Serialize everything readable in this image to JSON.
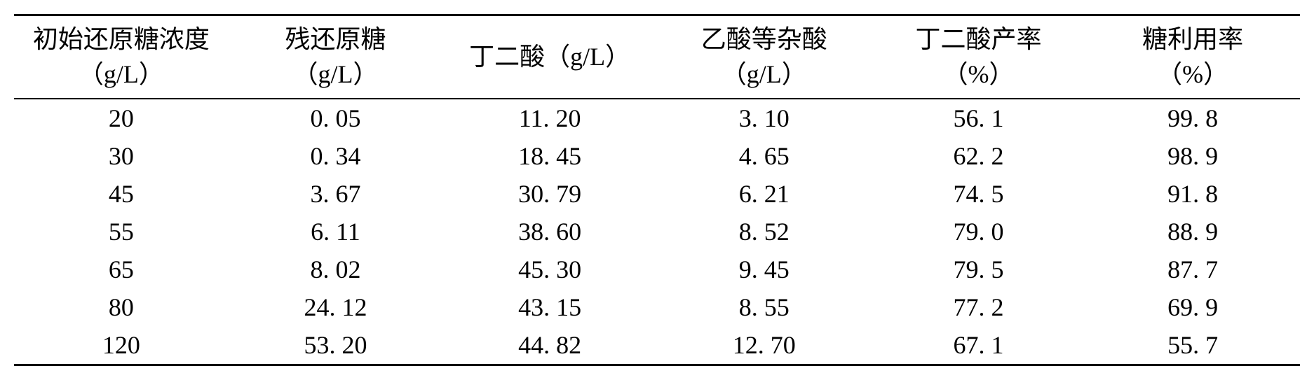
{
  "table": {
    "columns": [
      {
        "line1": "初始还原糖浓度",
        "line2": "（g/L）"
      },
      {
        "line1": "残还原糖",
        "line2": "（g/L）"
      },
      {
        "line1": "丁二酸（g/L）",
        "line2": ""
      },
      {
        "line1": "乙酸等杂酸",
        "line2": "（g/L）"
      },
      {
        "line1": "丁二酸产率",
        "line2": "（%）"
      },
      {
        "line1": "糖利用率",
        "line2": "（%）"
      }
    ],
    "rows": [
      [
        "20",
        "0. 05",
        "11. 20",
        "3. 10",
        "56. 1",
        "99. 8"
      ],
      [
        "30",
        "0. 34",
        "18. 45",
        "4. 65",
        "62. 2",
        "98. 9"
      ],
      [
        "45",
        "3. 67",
        "30. 79",
        "6. 21",
        "74. 5",
        "91. 8"
      ],
      [
        "55",
        "6. 11",
        "38. 60",
        "8. 52",
        "79. 0",
        "88. 9"
      ],
      [
        "65",
        "8. 02",
        "45. 30",
        "9. 45",
        "79. 5",
        "87. 7"
      ],
      [
        "80",
        "24. 12",
        "43. 15",
        "8. 55",
        "77. 2",
        "69. 9"
      ],
      [
        "120",
        "53. 20",
        "44. 82",
        "12. 70",
        "67. 1",
        "55. 7"
      ]
    ],
    "border_color": "#000000",
    "background_color": "#ffffff",
    "font_size": 36,
    "header_font_size": 36
  }
}
